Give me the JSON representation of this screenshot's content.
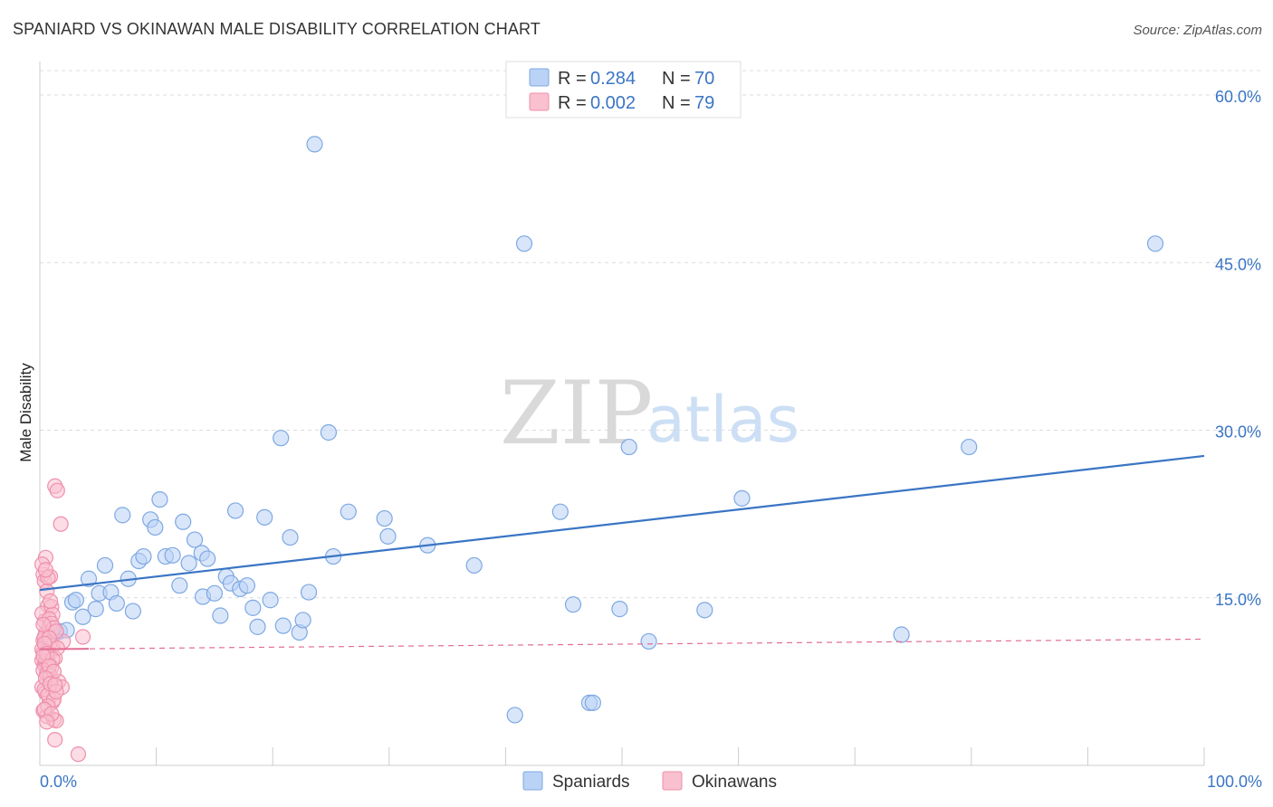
{
  "title": "SPANIARD VS OKINAWAN MALE DISABILITY CORRELATION CHART",
  "source": "Source: ZipAtlas.com",
  "watermark": {
    "zip": "ZIP",
    "atlas": "atlas"
  },
  "legend": {
    "r_label": "R =",
    "n_label": "N =",
    "rows": [
      {
        "r": "0.284",
        "n": "70",
        "fill": "#b9d2f5",
        "stroke": "#7ea8e2"
      },
      {
        "r": "0.002",
        "n": "79",
        "fill": "#f9c0cf",
        "stroke": "#ee8fab"
      }
    ]
  },
  "chart_data": {
    "type": "scatter",
    "title": "SPANIARD VS OKINAWAN MALE DISABILITY CORRELATION CHART",
    "xlabel": "",
    "ylabel": "Male Disability",
    "xlim": [
      0,
      100
    ],
    "ylim": [
      0,
      63
    ],
    "x_tick_labels": [
      {
        "value": 0,
        "label": "0.0%"
      },
      {
        "value": 100,
        "label": "100.0%"
      }
    ],
    "y_ticks": [
      {
        "value": 15,
        "label": "15.0%"
      },
      {
        "value": 30,
        "label": "30.0%"
      },
      {
        "value": 45,
        "label": "45.0%"
      },
      {
        "value": 60,
        "label": "60.0%"
      }
    ],
    "x_minor_ticks": [
      0,
      10,
      20,
      30,
      40,
      50,
      60,
      70,
      80,
      90,
      100
    ],
    "series": [
      {
        "name": "Spaniards",
        "color": "#3a75c4",
        "fill": "#b9d2f5",
        "stroke": "#7ea8e2",
        "trend": {
          "x": [
            0,
            100
          ],
          "y": [
            15.7,
            27.7
          ],
          "style": "solid"
        },
        "points": [
          [
            0.9,
            11.8
          ],
          [
            1.4,
            11.9
          ],
          [
            1.7,
            12.0
          ],
          [
            2.3,
            12.1
          ],
          [
            2.8,
            14.6
          ],
          [
            3.1,
            14.8
          ],
          [
            3.7,
            13.3
          ],
          [
            4.2,
            16.7
          ],
          [
            4.8,
            14.0
          ],
          [
            5.1,
            15.4
          ],
          [
            5.6,
            17.9
          ],
          [
            6.1,
            15.5
          ],
          [
            6.6,
            14.5
          ],
          [
            7.1,
            22.4
          ],
          [
            7.6,
            16.7
          ],
          [
            8.0,
            13.8
          ],
          [
            8.5,
            18.3
          ],
          [
            8.9,
            18.7
          ],
          [
            9.5,
            22.0
          ],
          [
            9.9,
            21.3
          ],
          [
            10.3,
            23.8
          ],
          [
            10.8,
            18.7
          ],
          [
            11.4,
            18.8
          ],
          [
            12.0,
            16.1
          ],
          [
            12.3,
            21.8
          ],
          [
            12.8,
            18.1
          ],
          [
            13.3,
            20.2
          ],
          [
            13.9,
            19.0
          ],
          [
            14.4,
            18.5
          ],
          [
            14.0,
            15.1
          ],
          [
            15.0,
            15.4
          ],
          [
            15.5,
            13.4
          ],
          [
            16.0,
            16.9
          ],
          [
            16.4,
            16.3
          ],
          [
            16.8,
            22.8
          ],
          [
            17.2,
            15.8
          ],
          [
            17.8,
            16.1
          ],
          [
            18.3,
            14.1
          ],
          [
            18.7,
            12.4
          ],
          [
            19.3,
            22.2
          ],
          [
            19.8,
            14.8
          ],
          [
            20.7,
            29.3
          ],
          [
            20.9,
            12.5
          ],
          [
            21.5,
            20.4
          ],
          [
            22.3,
            11.9
          ],
          [
            22.6,
            13.0
          ],
          [
            23.1,
            15.5
          ],
          [
            23.6,
            55.6
          ],
          [
            24.8,
            29.8
          ],
          [
            25.2,
            18.7
          ],
          [
            26.5,
            22.7
          ],
          [
            29.6,
            22.1
          ],
          [
            29.9,
            20.5
          ],
          [
            33.3,
            19.7
          ],
          [
            37.3,
            17.9
          ],
          [
            40.8,
            4.5
          ],
          [
            41.6,
            46.7
          ],
          [
            44.7,
            22.7
          ],
          [
            45.8,
            14.4
          ],
          [
            47.2,
            5.6
          ],
          [
            47.5,
            5.6
          ],
          [
            49.8,
            14.0
          ],
          [
            50.6,
            28.5
          ],
          [
            52.3,
            11.1
          ],
          [
            57.1,
            13.9
          ],
          [
            60.3,
            23.9
          ],
          [
            74.0,
            11.7
          ],
          [
            79.8,
            28.5
          ],
          [
            95.8,
            46.7
          ],
          [
            0.6,
            11.2
          ]
        ]
      },
      {
        "name": "Okinawans",
        "color": "#e36c92",
        "fill": "#f9c0cf",
        "stroke": "#ee8fab",
        "trend": {
          "x": [
            0,
            100
          ],
          "y": [
            10.4,
            11.3
          ],
          "style": "dashed",
          "solid_until": 4.2
        },
        "points": [
          [
            0.3,
            10.1
          ],
          [
            0.4,
            12.9
          ],
          [
            0.2,
            9.4
          ],
          [
            0.5,
            11.8
          ],
          [
            0.6,
            8.6
          ],
          [
            0.3,
            17.1
          ],
          [
            0.5,
            18.6
          ],
          [
            0.4,
            16.5
          ],
          [
            0.6,
            15.6
          ],
          [
            0.7,
            14.3
          ],
          [
            0.2,
            13.6
          ],
          [
            0.8,
            12.4
          ],
          [
            0.3,
            11.2
          ],
          [
            0.5,
            10.7
          ],
          [
            0.6,
            9.7
          ],
          [
            0.4,
            9.0
          ],
          [
            0.7,
            8.3
          ],
          [
            0.9,
            7.7
          ],
          [
            0.2,
            7.0
          ],
          [
            0.5,
            6.5
          ],
          [
            0.8,
            6.0
          ],
          [
            1.1,
            5.7
          ],
          [
            0.3,
            4.9
          ],
          [
            0.6,
            4.4
          ],
          [
            1.2,
            4.1
          ],
          [
            1.4,
            4.0
          ],
          [
            1.3,
            2.3
          ],
          [
            3.3,
            1.0
          ],
          [
            1.3,
            25.0
          ],
          [
            1.5,
            24.6
          ],
          [
            1.8,
            21.6
          ],
          [
            0.9,
            16.9
          ],
          [
            0.7,
            16.8
          ],
          [
            1.0,
            14.2
          ],
          [
            1.1,
            13.5
          ],
          [
            0.8,
            13.1
          ],
          [
            1.0,
            12.7
          ],
          [
            1.2,
            12.3
          ],
          [
            0.4,
            11.5
          ],
          [
            0.9,
            11.0
          ],
          [
            1.1,
            10.7
          ],
          [
            0.2,
            10.4
          ],
          [
            0.6,
            10.2
          ],
          [
            0.8,
            9.9
          ],
          [
            1.3,
            9.6
          ],
          [
            0.5,
            9.3
          ],
          [
            0.7,
            9.1
          ],
          [
            1.0,
            8.8
          ],
          [
            0.3,
            8.5
          ],
          [
            0.6,
            8.2
          ],
          [
            0.9,
            8.0
          ],
          [
            1.6,
            7.5
          ],
          [
            1.9,
            7.0
          ],
          [
            0.4,
            6.8
          ],
          [
            0.7,
            6.3
          ],
          [
            1.2,
            5.9
          ],
          [
            2.0,
            11.1
          ],
          [
            3.7,
            11.5
          ],
          [
            0.2,
            18.0
          ],
          [
            0.5,
            17.5
          ],
          [
            0.9,
            14.7
          ],
          [
            1.4,
            12.0
          ],
          [
            0.3,
            12.6
          ],
          [
            0.8,
            11.4
          ],
          [
            1.5,
            10.5
          ],
          [
            0.4,
            10.9
          ],
          [
            0.6,
            10.0
          ],
          [
            1.1,
            9.5
          ],
          [
            0.3,
            9.8
          ],
          [
            0.8,
            8.9
          ],
          [
            1.2,
            8.4
          ],
          [
            0.5,
            7.8
          ],
          [
            0.9,
            7.3
          ],
          [
            1.4,
            6.6
          ],
          [
            0.7,
            5.3
          ],
          [
            0.4,
            5.0
          ],
          [
            1.0,
            4.6
          ],
          [
            0.6,
            3.9
          ],
          [
            1.3,
            7.2
          ]
        ]
      }
    ],
    "legend_position": "top-center"
  },
  "bottom_legend": [
    {
      "label": "Spaniards",
      "fill": "#b9d2f5",
      "stroke": "#7ea8e2"
    },
    {
      "label": "Okinawans",
      "fill": "#f9c0cf",
      "stroke": "#ee8fab"
    }
  ]
}
